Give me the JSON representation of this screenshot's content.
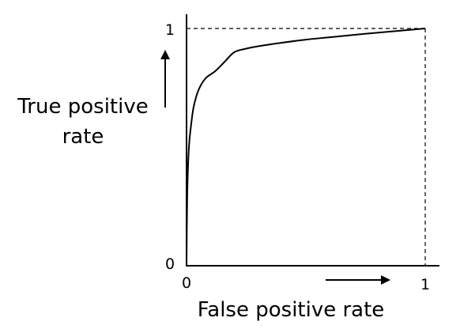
{
  "chart_data": {
    "type": "line",
    "title": "",
    "ylabel_lines": [
      "True positive",
      "rate"
    ],
    "xlabel": "False positive rate",
    "xlim": [
      0,
      1
    ],
    "ylim": [
      0,
      1
    ],
    "x_ticks": [
      "0",
      "1"
    ],
    "y_ticks": [
      "0",
      "1"
    ],
    "grid": false,
    "series": [
      {
        "x": [
          0,
          0.003,
          0.01,
          0.02,
          0.03,
          0.05,
          0.08,
          0.12,
          0.16,
          0.2,
          0.25,
          0.3,
          0.4,
          0.5,
          0.6,
          0.7,
          0.8,
          0.9,
          1.0
        ],
        "y": [
          0,
          0.3,
          0.5,
          0.6,
          0.67,
          0.74,
          0.79,
          0.82,
          0.86,
          0.9,
          0.915,
          0.925,
          0.94,
          0.953,
          0.963,
          0.973,
          0.982,
          0.991,
          1.0
        ]
      }
    ],
    "reference_lines": [
      "y = 1 (dashed)",
      "x = 1 (dashed)"
    ],
    "arrows": [
      "x-direction below x axis",
      "y-direction left of y axis"
    ]
  }
}
